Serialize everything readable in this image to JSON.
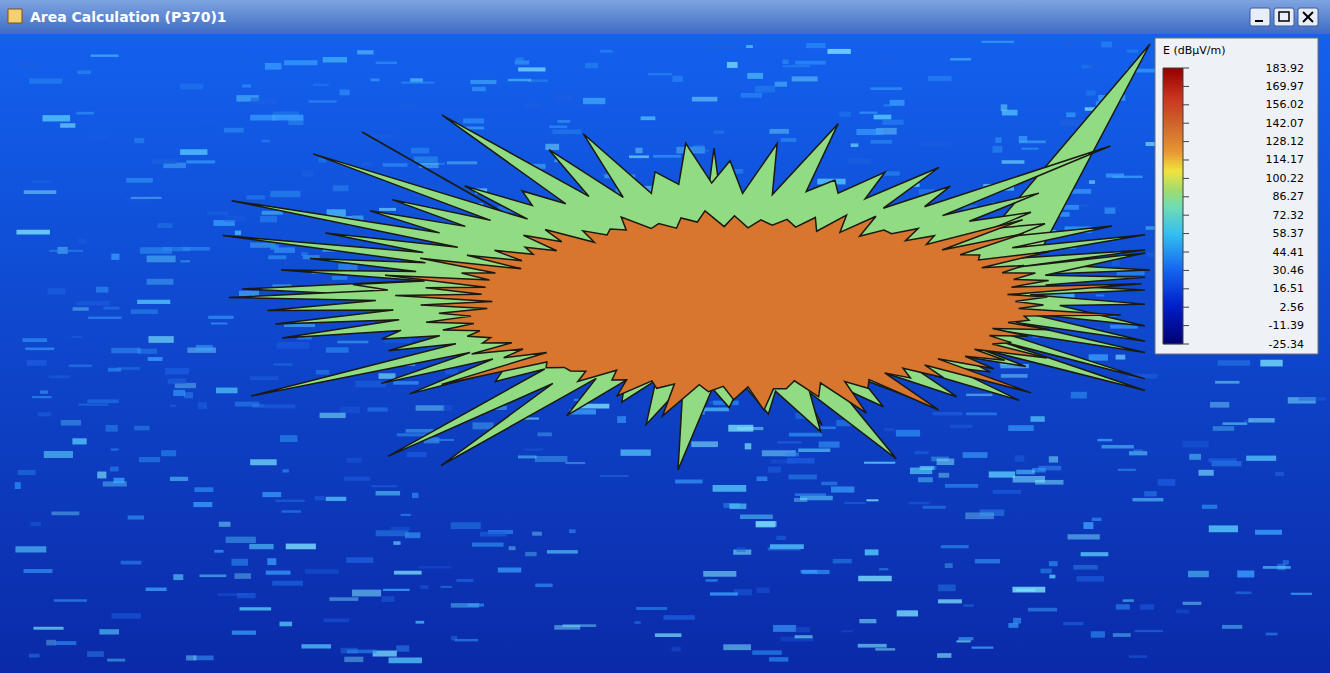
{
  "window": {
    "title": "Area Calculation (P370)1"
  },
  "chart_data": {
    "type": "heatmap",
    "color_bar": {
      "title": "E (dBµV/m)",
      "range": [
        -25.34,
        183.92
      ],
      "ticks": [
        183.92,
        169.97,
        156.02,
        142.07,
        128.12,
        114.17,
        100.22,
        86.27,
        72.32,
        58.37,
        44.41,
        30.46,
        16.51,
        2.56,
        -11.39,
        -25.34
      ]
    },
    "background_level": 30,
    "coverage_levels": [
      88,
      135
    ]
  }
}
